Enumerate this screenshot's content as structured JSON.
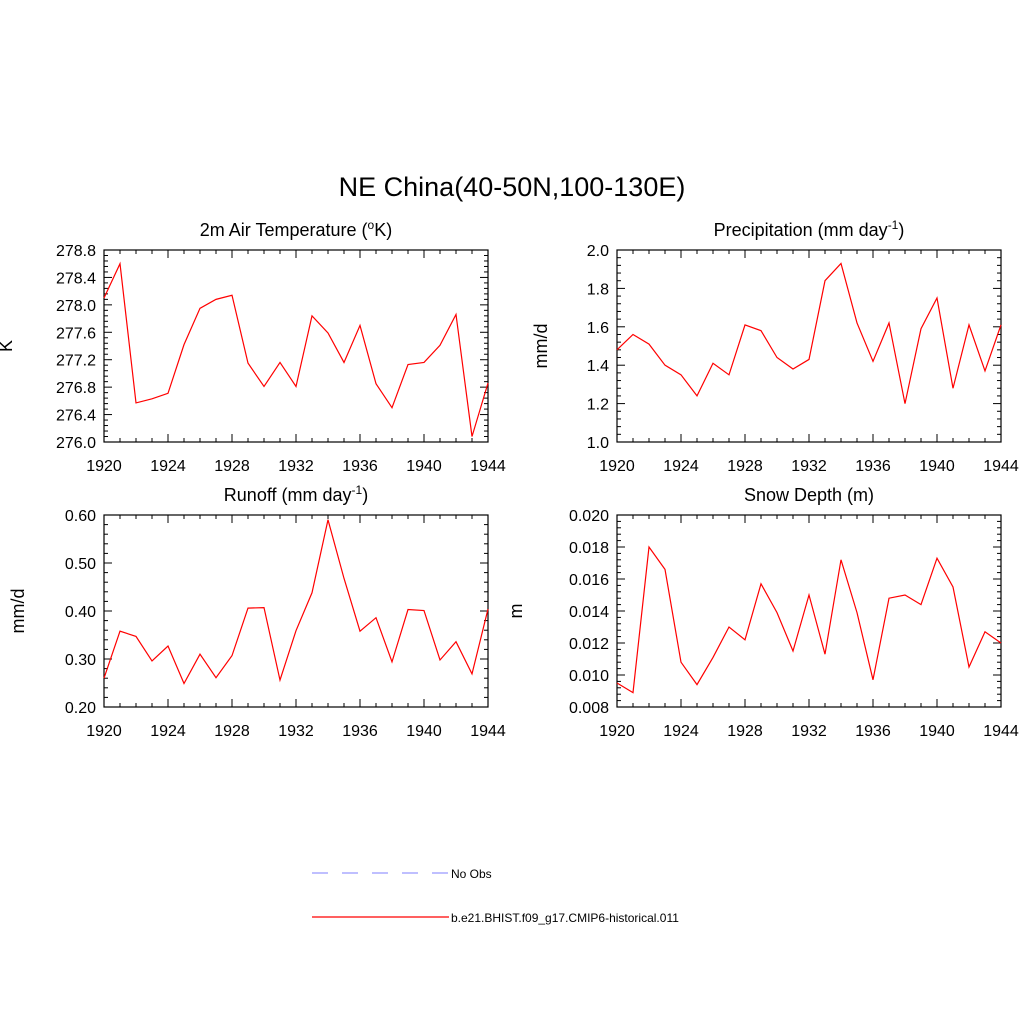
{
  "figure": {
    "title": "NE China(40-50N,100-130E)"
  },
  "legend": {
    "items": [
      {
        "label": "No Obs",
        "color": "#9999ff",
        "style": "dashed"
      },
      {
        "label": "b.e21.BHIST.f09_g17.CMIP6-historical.011",
        "color": "#ff0000",
        "style": "solid"
      }
    ]
  },
  "chart_data": [
    {
      "type": "line",
      "title": "2m Air Temperature (",
      "title_sup": "o",
      "title_end": "K)",
      "ylabel": "K",
      "xlim": [
        1920,
        1944
      ],
      "ylim": [
        276.0,
        278.8
      ],
      "xticks": [
        1920,
        1924,
        1928,
        1932,
        1936,
        1940,
        1944
      ],
      "yticks": [
        276.0,
        276.4,
        276.8,
        277.2,
        277.6,
        278.0,
        278.4,
        278.8
      ],
      "ytick_labels": [
        "276.0",
        "276.4",
        "276.8",
        "277.2",
        "277.6",
        "278.0",
        "278.4",
        "278.8"
      ],
      "series": [
        {
          "color": "#ff0000",
          "x": [
            1920,
            1921,
            1922,
            1923,
            1924,
            1925,
            1926,
            1927,
            1928,
            1929,
            1930,
            1931,
            1932,
            1933,
            1934,
            1935,
            1936,
            1937,
            1938,
            1939,
            1940,
            1941,
            1942,
            1943,
            1944
          ],
          "y": [
            278.1,
            278.6,
            276.57,
            276.63,
            276.71,
            277.42,
            277.95,
            278.08,
            278.14,
            277.15,
            276.81,
            277.16,
            276.81,
            277.84,
            277.59,
            277.16,
            277.7,
            276.85,
            276.5,
            277.13,
            277.16,
            277.41,
            277.86,
            276.08,
            276.86
          ]
        }
      ]
    },
    {
      "type": "line",
      "title": "Precipitation (mm day",
      "title_sup": "-1",
      "title_end": ")",
      "ylabel": "mm/d",
      "xlim": [
        1920,
        1944
      ],
      "ylim": [
        1.0,
        2.0
      ],
      "xticks": [
        1920,
        1924,
        1928,
        1932,
        1936,
        1940,
        1944
      ],
      "yticks": [
        1.0,
        1.2,
        1.4,
        1.6,
        1.8,
        2.0
      ],
      "ytick_labels": [
        "1.0",
        "1.2",
        "1.4",
        "1.6",
        "1.8",
        "2.0"
      ],
      "series": [
        {
          "color": "#ff0000",
          "x": [
            1920,
            1921,
            1922,
            1923,
            1924,
            1925,
            1926,
            1927,
            1928,
            1929,
            1930,
            1931,
            1932,
            1933,
            1934,
            1935,
            1936,
            1937,
            1938,
            1939,
            1940,
            1941,
            1942,
            1943,
            1944
          ],
          "y": [
            1.48,
            1.56,
            1.51,
            1.4,
            1.35,
            1.24,
            1.41,
            1.35,
            1.61,
            1.58,
            1.44,
            1.38,
            1.43,
            1.84,
            1.93,
            1.62,
            1.42,
            1.62,
            1.2,
            1.59,
            1.75,
            1.28,
            1.61,
            1.37,
            1.61
          ]
        }
      ]
    },
    {
      "type": "line",
      "title": "Runoff (mm day",
      "title_sup": "-1",
      "title_end": ")",
      "ylabel": "mm/d",
      "xlim": [
        1920,
        1944
      ],
      "ylim": [
        0.2,
        0.6
      ],
      "xticks": [
        1920,
        1924,
        1928,
        1932,
        1936,
        1940,
        1944
      ],
      "yticks": [
        0.2,
        0.3,
        0.4,
        0.5,
        0.6
      ],
      "ytick_labels": [
        "0.20",
        "0.30",
        "0.40",
        "0.50",
        "0.60"
      ],
      "series": [
        {
          "color": "#ff0000",
          "x": [
            1920,
            1921,
            1922,
            1923,
            1924,
            1925,
            1926,
            1927,
            1928,
            1929,
            1930,
            1931,
            1932,
            1933,
            1934,
            1935,
            1936,
            1937,
            1938,
            1939,
            1940,
            1941,
            1942,
            1943,
            1944
          ],
          "y": [
            0.26,
            0.358,
            0.347,
            0.296,
            0.327,
            0.249,
            0.31,
            0.261,
            0.307,
            0.406,
            0.407,
            0.256,
            0.359,
            0.438,
            0.59,
            0.468,
            0.358,
            0.386,
            0.294,
            0.403,
            0.401,
            0.298,
            0.336,
            0.269,
            0.404
          ]
        }
      ]
    },
    {
      "type": "line",
      "title": "Snow Depth (m)",
      "title_sup": "",
      "title_end": "",
      "ylabel": "m",
      "xlim": [
        1920,
        1944
      ],
      "ylim": [
        0.008,
        0.02
      ],
      "xticks": [
        1920,
        1924,
        1928,
        1932,
        1936,
        1940,
        1944
      ],
      "yticks": [
        0.008,
        0.01,
        0.012,
        0.014,
        0.016,
        0.018,
        0.02
      ],
      "ytick_labels": [
        "0.008",
        "0.010",
        "0.012",
        "0.014",
        "0.016",
        "0.018",
        "0.020"
      ],
      "series": [
        {
          "color": "#ff0000",
          "x": [
            1920,
            1921,
            1922,
            1923,
            1924,
            1925,
            1926,
            1927,
            1928,
            1929,
            1930,
            1931,
            1932,
            1933,
            1934,
            1935,
            1936,
            1937,
            1938,
            1939,
            1940,
            1941,
            1942,
            1943,
            1944
          ],
          "y": [
            0.0095,
            0.0089,
            0.018,
            0.0166,
            0.0108,
            0.0094,
            0.0111,
            0.013,
            0.0122,
            0.0157,
            0.0139,
            0.0115,
            0.015,
            0.0113,
            0.0172,
            0.0139,
            0.0097,
            0.0148,
            0.015,
            0.0144,
            0.0173,
            0.0155,
            0.0105,
            0.0127,
            0.012
          ]
        }
      ]
    }
  ]
}
